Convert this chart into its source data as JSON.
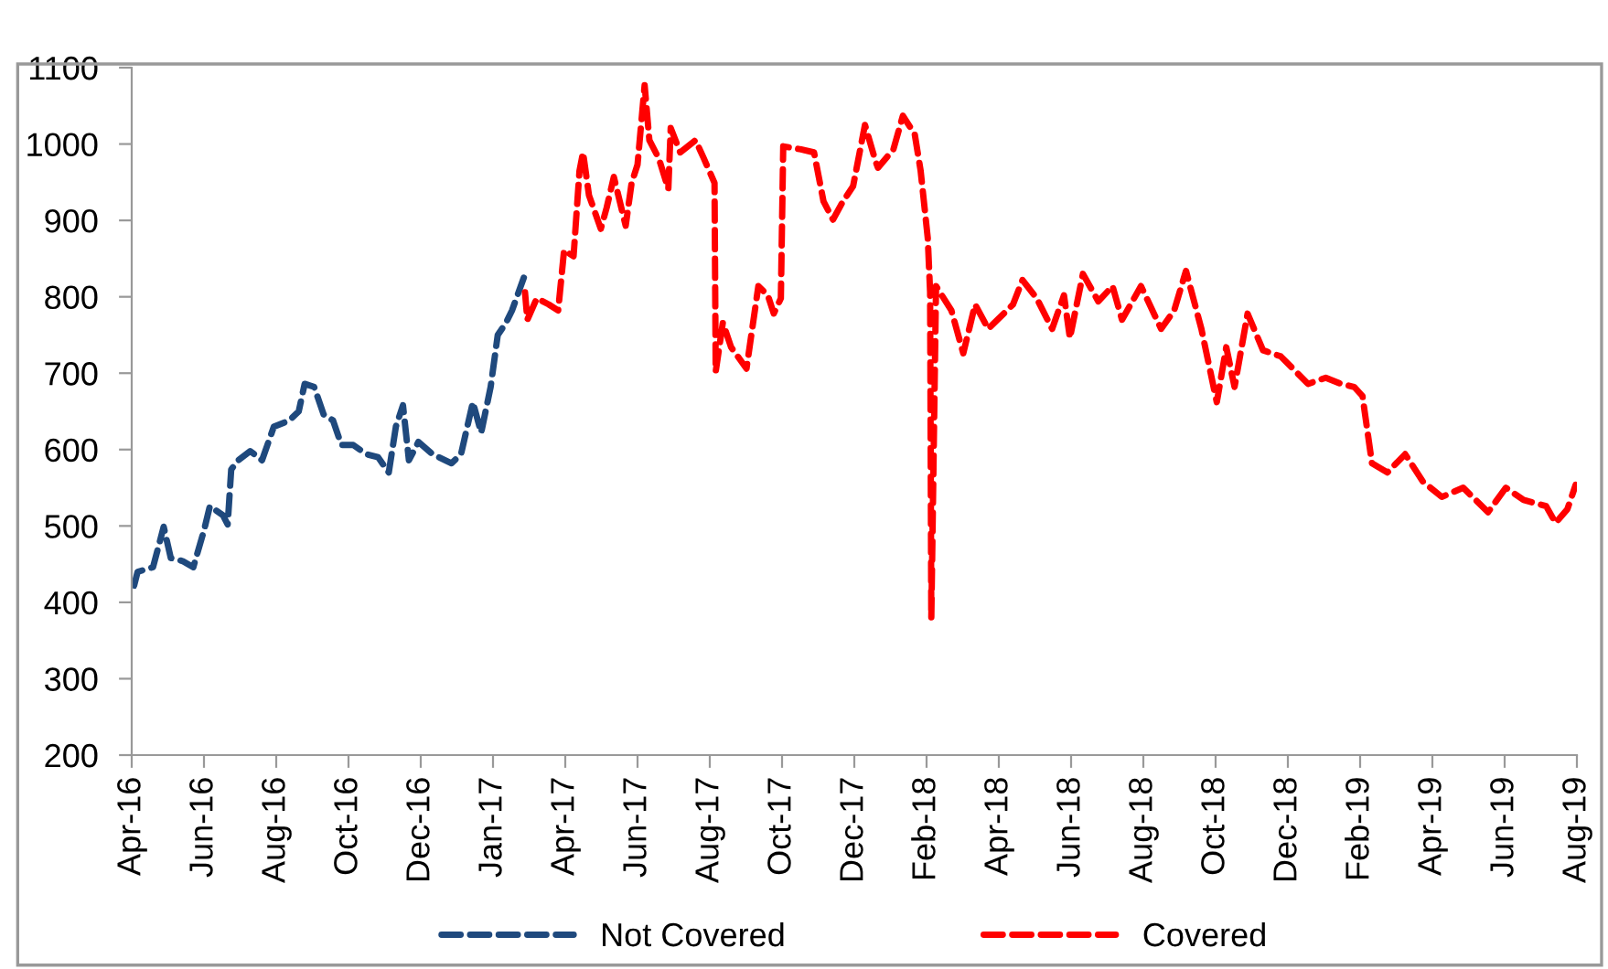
{
  "chart_data": {
    "type": "line",
    "line_style": "dashed",
    "marker": "none",
    "grid": false,
    "legend": "bottom",
    "xlim": [
      "2016-04-01",
      "2019-08-04"
    ],
    "xticks": [
      {
        "value": "2016-04-01",
        "label": "Apr-16"
      },
      {
        "value": "2016-06-01",
        "label": "Jun-16"
      },
      {
        "value": "2016-08-01",
        "label": "Aug-16"
      },
      {
        "value": "2016-10-01",
        "label": "Oct-16"
      },
      {
        "value": "2016-12-01",
        "label": "Dec-16"
      },
      {
        "value": "2017-01-31",
        "label": "Jan-17"
      },
      {
        "value": "2017-04-02",
        "label": "Apr-17"
      },
      {
        "value": "2017-06-02",
        "label": "Jun-17"
      },
      {
        "value": "2017-08-02",
        "label": "Aug-17"
      },
      {
        "value": "2017-10-02",
        "label": "Oct-17"
      },
      {
        "value": "2017-12-02",
        "label": "Dec-17"
      },
      {
        "value": "2018-02-01",
        "label": "Feb-18"
      },
      {
        "value": "2018-04-03",
        "label": "Apr-18"
      },
      {
        "value": "2018-06-03",
        "label": "Jun-18"
      },
      {
        "value": "2018-08-03",
        "label": "Aug-18"
      },
      {
        "value": "2018-10-03",
        "label": "Oct-18"
      },
      {
        "value": "2018-12-03",
        "label": "Dec-18"
      },
      {
        "value": "2019-02-02",
        "label": "Feb-19"
      },
      {
        "value": "2019-04-04",
        "label": "Apr-19"
      },
      {
        "value": "2019-06-04",
        "label": "Jun-19"
      },
      {
        "value": "2019-08-04",
        "label": "Aug-19"
      }
    ],
    "ylim": [
      200,
      1100
    ],
    "yticks": [
      200,
      300,
      400,
      500,
      600,
      700,
      800,
      900,
      1000,
      1100
    ],
    "series": [
      {
        "name": "Not Covered",
        "color": "#1f497d",
        "x": [
          "2016-04-03",
          "2016-04-06",
          "2016-04-19",
          "2016-04-28",
          "2016-05-04",
          "2016-05-14",
          "2016-05-23",
          "2016-06-01",
          "2016-06-06",
          "2016-06-17",
          "2016-06-21",
          "2016-06-24",
          "2016-06-30",
          "2016-07-10",
          "2016-07-20",
          "2016-07-30",
          "2016-08-12",
          "2016-08-20",
          "2016-08-25",
          "2016-09-02",
          "2016-09-10",
          "2016-09-18",
          "2016-09-25",
          "2016-10-05",
          "2016-10-16",
          "2016-10-26",
          "2016-11-04",
          "2016-11-10",
          "2016-11-16",
          "2016-11-21",
          "2016-11-29",
          "2016-12-11",
          "2016-12-27",
          "2017-01-04",
          "2017-01-14",
          "2017-01-21",
          "2017-01-29",
          "2017-02-04",
          "2017-02-11",
          "2017-02-16",
          "2017-02-26"
        ],
        "values": [
          422,
          440,
          446,
          499,
          458,
          454,
          446,
          494,
          526,
          514,
          502,
          574,
          586,
          598,
          586,
          630,
          638,
          650,
          686,
          682,
          646,
          638,
          606,
          606,
          594,
          590,
          570,
          630,
          658,
          586,
          610,
          594,
          582,
          594,
          662,
          622,
          682,
          750,
          766,
          782,
          825
        ]
      },
      {
        "name": "Covered",
        "color": "#ff0000",
        "x": [
          "2017-02-27",
          "2017-03-01",
          "2017-03-09",
          "2017-03-19",
          "2017-03-27",
          "2017-04-01",
          "2017-04-09",
          "2017-04-14",
          "2017-04-17",
          "2017-04-22",
          "2017-05-02",
          "2017-05-07",
          "2017-05-13",
          "2017-05-23",
          "2017-05-28",
          "2017-06-02",
          "2017-06-08",
          "2017-06-12",
          "2017-06-20",
          "2017-06-28",
          "2017-06-30",
          "2017-07-08",
          "2017-07-21",
          "2017-07-28",
          "2017-08-06",
          "2017-08-07",
          "2017-08-13",
          "2017-08-20",
          "2017-09-02",
          "2017-09-12",
          "2017-09-20",
          "2017-09-25",
          "2017-10-01",
          "2017-10-03",
          "2017-10-18",
          "2017-10-29",
          "2017-11-06",
          "2017-11-14",
          "2017-11-21",
          "2017-12-01",
          "2017-12-11",
          "2017-12-20",
          "2017-12-22",
          "2018-01-04",
          "2018-01-12",
          "2018-01-22",
          "2018-01-27",
          "2018-02-02",
          "2018-02-04",
          "2018-02-05",
          "2018-02-09",
          "2018-02-22",
          "2018-03-04",
          "2018-03-14",
          "2018-03-25",
          "2018-04-15",
          "2018-04-23",
          "2018-05-05",
          "2018-05-18",
          "2018-05-28",
          "2018-06-02",
          "2018-06-13",
          "2018-06-26",
          "2018-07-08",
          "2018-07-16",
          "2018-08-01",
          "2018-08-18",
          "2018-08-29",
          "2018-09-08",
          "2018-09-21",
          "2018-10-04",
          "2018-10-12",
          "2018-10-19",
          "2018-10-30",
          "2018-11-12",
          "2018-11-27",
          "2018-12-20",
          "2019-01-04",
          "2019-01-17",
          "2019-01-28",
          "2019-02-04",
          "2019-02-12",
          "2019-02-25",
          "2019-03-12",
          "2019-03-27",
          "2019-04-12",
          "2019-04-30",
          "2019-05-21",
          "2019-06-05",
          "2019-06-20",
          "2019-07-09",
          "2019-07-17",
          "2019-07-27",
          "2019-08-03"
        ],
        "values": [
          806,
          770,
          798,
          790,
          782,
          861,
          853,
          965,
          989,
          933,
          889,
          917,
          957,
          893,
          949,
          973,
          1077,
          1005,
          981,
          941,
          1021,
          989,
          1005,
          981,
          949,
          702,
          766,
          734,
          706,
          814,
          802,
          778,
          798,
          997,
          993,
          989,
          925,
          901,
          921,
          945,
          1025,
          977,
          969,
          993,
          1037,
          1013,
          965,
          877,
          806,
          379,
          814,
          782,
          726,
          790,
          758,
          790,
          822,
          798,
          758,
          802,
          746,
          830,
          794,
          814,
          770,
          814,
          758,
          782,
          834,
          758,
          662,
          734,
          682,
          778,
          730,
          722,
          686,
          694,
          686,
          682,
          670,
          582,
          570,
          594,
          558,
          538,
          550,
          518,
          550,
          534,
          526,
          504,
          522,
          554
        ]
      }
    ]
  }
}
